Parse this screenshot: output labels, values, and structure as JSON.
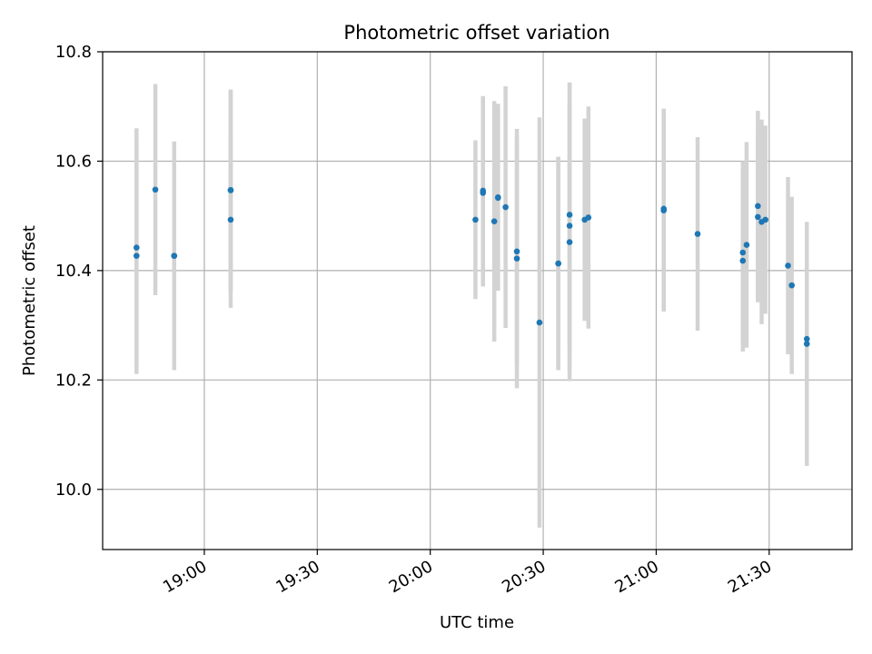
{
  "chart_data": {
    "type": "scatter",
    "title": "Photometric offset variation",
    "xlabel": "UTC time",
    "ylabel": "Photometric offset",
    "xlim": [
      "18:33",
      "21:52"
    ],
    "ylim": [
      9.89,
      10.8
    ],
    "grid": true,
    "x_ticks": [
      "19:00",
      "19:30",
      "20:00",
      "20:30",
      "21:00",
      "21:30"
    ],
    "y_ticks": [
      10.0,
      10.2,
      10.4,
      10.6,
      10.8
    ],
    "marker_color": "#1f77b4",
    "errorbar_color": "#d3d3d3",
    "points": [
      {
        "x": "18:42",
        "y": 10.427,
        "yerr": 0.216
      },
      {
        "x": "18:42",
        "y": 10.442,
        "yerr": 0.218
      },
      {
        "x": "18:47",
        "y": 10.548,
        "yerr": 0.193
      },
      {
        "x": "18:52",
        "y": 10.427,
        "yerr": 0.209
      },
      {
        "x": "18:52",
        "y": 10.427,
        "yerr": 0.207
      },
      {
        "x": "19:07",
        "y": 10.493,
        "yerr": 0.161
      },
      {
        "x": "19:07",
        "y": 10.547,
        "yerr": 0.184
      },
      {
        "x": "19:07",
        "y": 10.547,
        "yerr": 0.181
      },
      {
        "x": "20:12",
        "y": 10.493,
        "yerr": 0.145
      },
      {
        "x": "20:14",
        "y": 10.546,
        "yerr": 0.173
      },
      {
        "x": "20:14",
        "y": 10.542,
        "yerr": 0.171
      },
      {
        "x": "20:17",
        "y": 10.49,
        "yerr": 0.22
      },
      {
        "x": "20:18",
        "y": 10.533,
        "yerr": 0.167
      },
      {
        "x": "20:18",
        "y": 10.534,
        "yerr": 0.171
      },
      {
        "x": "20:20",
        "y": 10.516,
        "yerr": 0.221
      },
      {
        "x": "20:23",
        "y": 10.435,
        "yerr": 0.21
      },
      {
        "x": "20:23",
        "y": 10.422,
        "yerr": 0.237
      },
      {
        "x": "20:29",
        "y": 10.305,
        "yerr": 0.375
      },
      {
        "x": "20:34",
        "y": 10.413,
        "yerr": 0.195
      },
      {
        "x": "20:34",
        "y": 10.413,
        "yerr": 0.195
      },
      {
        "x": "20:37",
        "y": 10.452,
        "yerr": 0.254
      },
      {
        "x": "20:37",
        "y": 10.482,
        "yerr": 0.262
      },
      {
        "x": "20:37",
        "y": 10.502,
        "yerr": 0.24
      },
      {
        "x": "20:41",
        "y": 10.493,
        "yerr": 0.185
      },
      {
        "x": "20:42",
        "y": 10.497,
        "yerr": 0.203
      },
      {
        "x": "21:02",
        "y": 10.513,
        "yerr": 0.183
      },
      {
        "x": "21:02",
        "y": 10.51,
        "yerr": 0.185
      },
      {
        "x": "21:11",
        "y": 10.467,
        "yerr": 0.177
      },
      {
        "x": "21:23",
        "y": 10.433,
        "yerr": 0.167
      },
      {
        "x": "21:23",
        "y": 10.418,
        "yerr": 0.166
      },
      {
        "x": "21:24",
        "y": 10.447,
        "yerr": 0.188
      },
      {
        "x": "21:27",
        "y": 10.498,
        "yerr": 0.156
      },
      {
        "x": "21:27",
        "y": 10.518,
        "yerr": 0.174
      },
      {
        "x": "21:28",
        "y": 10.489,
        "yerr": 0.187
      },
      {
        "x": "21:29",
        "y": 10.493,
        "yerr": 0.172
      },
      {
        "x": "21:35",
        "y": 10.409,
        "yerr": 0.162
      },
      {
        "x": "21:36",
        "y": 10.373,
        "yerr": 0.162
      },
      {
        "x": "21:40",
        "y": 10.275,
        "yerr": 0.21
      },
      {
        "x": "21:40",
        "y": 10.266,
        "yerr": 0.223
      }
    ]
  }
}
